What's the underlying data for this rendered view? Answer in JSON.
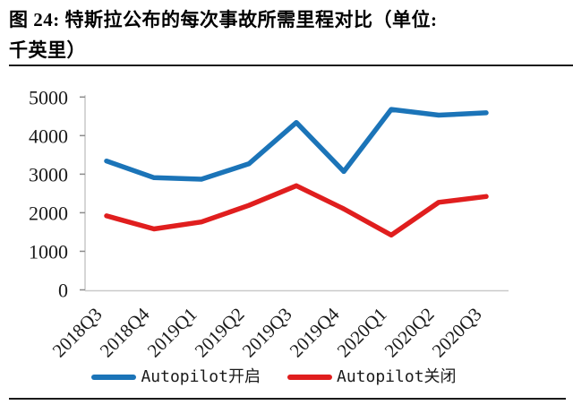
{
  "figure": {
    "title_line1": "图 24: 特斯拉公布的每次事故所需里程对比（单位:",
    "title_line2": "千英里）"
  },
  "chart_data": {
    "type": "line",
    "title": "特斯拉公布的每次事故所需里程对比",
    "unit": "千英里",
    "categories": [
      "2018Q3",
      "2018Q4",
      "2019Q1",
      "2019Q2",
      "2019Q3",
      "2019Q4",
      "2020Q1",
      "2020Q2",
      "2020Q3"
    ],
    "series": [
      {
        "name": "Autopilot开启",
        "color": "#1b74b8",
        "values": [
          3340,
          2910,
          2870,
          3270,
          4340,
          3070,
          4680,
          4530,
          4590
        ]
      },
      {
        "name": "Autopilot关闭",
        "color": "#e01e1e",
        "values": [
          1920,
          1580,
          1760,
          2190,
          2700,
          2100,
          1420,
          2270,
          2420
        ]
      }
    ],
    "ylim": [
      0,
      5000
    ],
    "yticks": [
      0,
      1000,
      2000,
      3000,
      4000,
      5000
    ],
    "grid": false,
    "legend_position": "bottom",
    "axis_color": "#c9c9c9",
    "tick_color": "#8c8c8c",
    "label_color": "#1a1a1a"
  }
}
